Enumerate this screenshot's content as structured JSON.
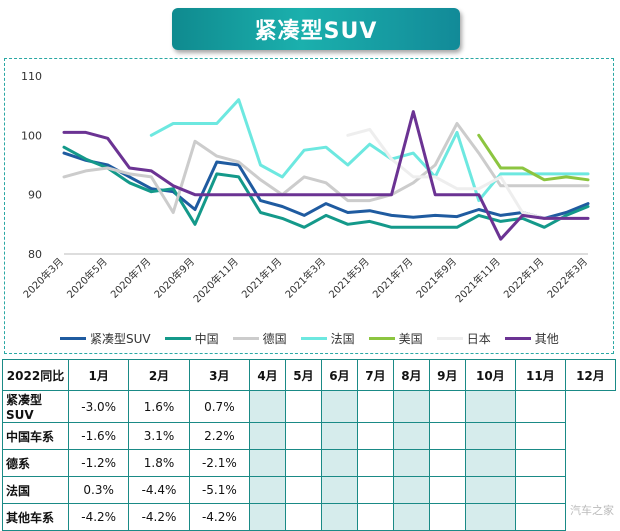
{
  "title": "紧凑型SUV",
  "chart_data": {
    "type": "line",
    "ylim": [
      80,
      110
    ],
    "yticks": [
      "80",
      "90",
      "100",
      "110"
    ],
    "x_labels_shown": [
      "2020年3月",
      "2020年5月",
      "2020年7月",
      "2020年9月",
      "2020年11月",
      "2021年1月",
      "2021年3月",
      "2021年5月",
      "2021年7月",
      "2021年9月",
      "2021年11月",
      "2022年1月",
      "2022年3月"
    ],
    "x_count": 25,
    "series": [
      {
        "name": "紧凑型SUV",
        "color": "#1f5ba0",
        "values": [
          97,
          95.8,
          95,
          93,
          91,
          90.5,
          87.5,
          95.5,
          95,
          89,
          88,
          86.5,
          88.5,
          87,
          87.3,
          86.5,
          86.2,
          86.5,
          86.3,
          87.5,
          86.5,
          87,
          86,
          87,
          88.5
        ]
      },
      {
        "name": "中国",
        "color": "#14998a",
        "values": [
          98,
          96,
          94.5,
          92,
          90.5,
          91,
          85,
          93.5,
          93,
          87,
          86,
          84.5,
          86.5,
          85,
          85.5,
          84.5,
          84.5,
          84.5,
          84.5,
          86.5,
          85.5,
          86,
          84.5,
          86.5,
          88
        ]
      },
      {
        "name": "德国",
        "color": "#cccccc",
        "values": [
          93,
          94,
          94.5,
          93.5,
          93,
          87,
          99,
          96.5,
          95.5,
          92.5,
          90,
          93,
          92,
          89,
          89,
          90,
          92,
          95,
          102,
          97,
          91.5,
          91.5,
          91.5,
          91.5,
          91.5
        ]
      },
      {
        "name": "法国",
        "color": "#6de8e0",
        "values": [
          null,
          null,
          null,
          null,
          100,
          102,
          102,
          102,
          106,
          95,
          93,
          97.5,
          98,
          95,
          98.5,
          96,
          97,
          93,
          100.5,
          89,
          93.5,
          93.5,
          93.5,
          93.5,
          93.5
        ]
      },
      {
        "name": "美国",
        "color": "#8cc540",
        "values": [
          null,
          null,
          null,
          null,
          null,
          null,
          null,
          null,
          null,
          null,
          null,
          null,
          null,
          null,
          null,
          null,
          null,
          null,
          null,
          100,
          94.5,
          94.5,
          92.5,
          93,
          92.5
        ]
      },
      {
        "name": "日本",
        "color": "#eeeeee",
        "values": [
          null,
          null,
          null,
          null,
          null,
          null,
          null,
          null,
          null,
          null,
          null,
          null,
          null,
          100,
          101,
          96,
          93,
          93,
          91,
          91,
          93,
          87,
          86,
          86,
          86
        ]
      },
      {
        "name": "其他",
        "color": "#6b3393",
        "values": [
          100.5,
          100.5,
          99.5,
          94.5,
          94,
          91.5,
          90,
          90,
          90,
          90,
          90,
          90,
          90,
          90,
          90,
          90,
          104,
          90,
          90,
          90,
          82.5,
          86.5,
          86,
          86,
          86
        ]
      }
    ]
  },
  "table": {
    "header": [
      "2022同比",
      "1月",
      "2月",
      "3月",
      "4月",
      "5月",
      "6月",
      "7月",
      "8月",
      "9月",
      "10月",
      "11月",
      "12月"
    ],
    "rows": [
      {
        "label": "紧凑型SUV",
        "values": [
          "-3.0%",
          "1.6%",
          "0.7%"
        ]
      },
      {
        "label": "中国车系",
        "values": [
          "-1.6%",
          "3.1%",
          "2.2%"
        ]
      },
      {
        "label": "德系",
        "values": [
          "-1.2%",
          "1.8%",
          "-2.1%"
        ]
      },
      {
        "label": "法国",
        "values": [
          "0.3%",
          "-4.4%",
          "-5.1%"
        ]
      },
      {
        "label": "其他车系",
        "values": [
          "-4.2%",
          "-4.2%",
          "-4.2%"
        ]
      }
    ]
  },
  "watermark": "汽车之家"
}
